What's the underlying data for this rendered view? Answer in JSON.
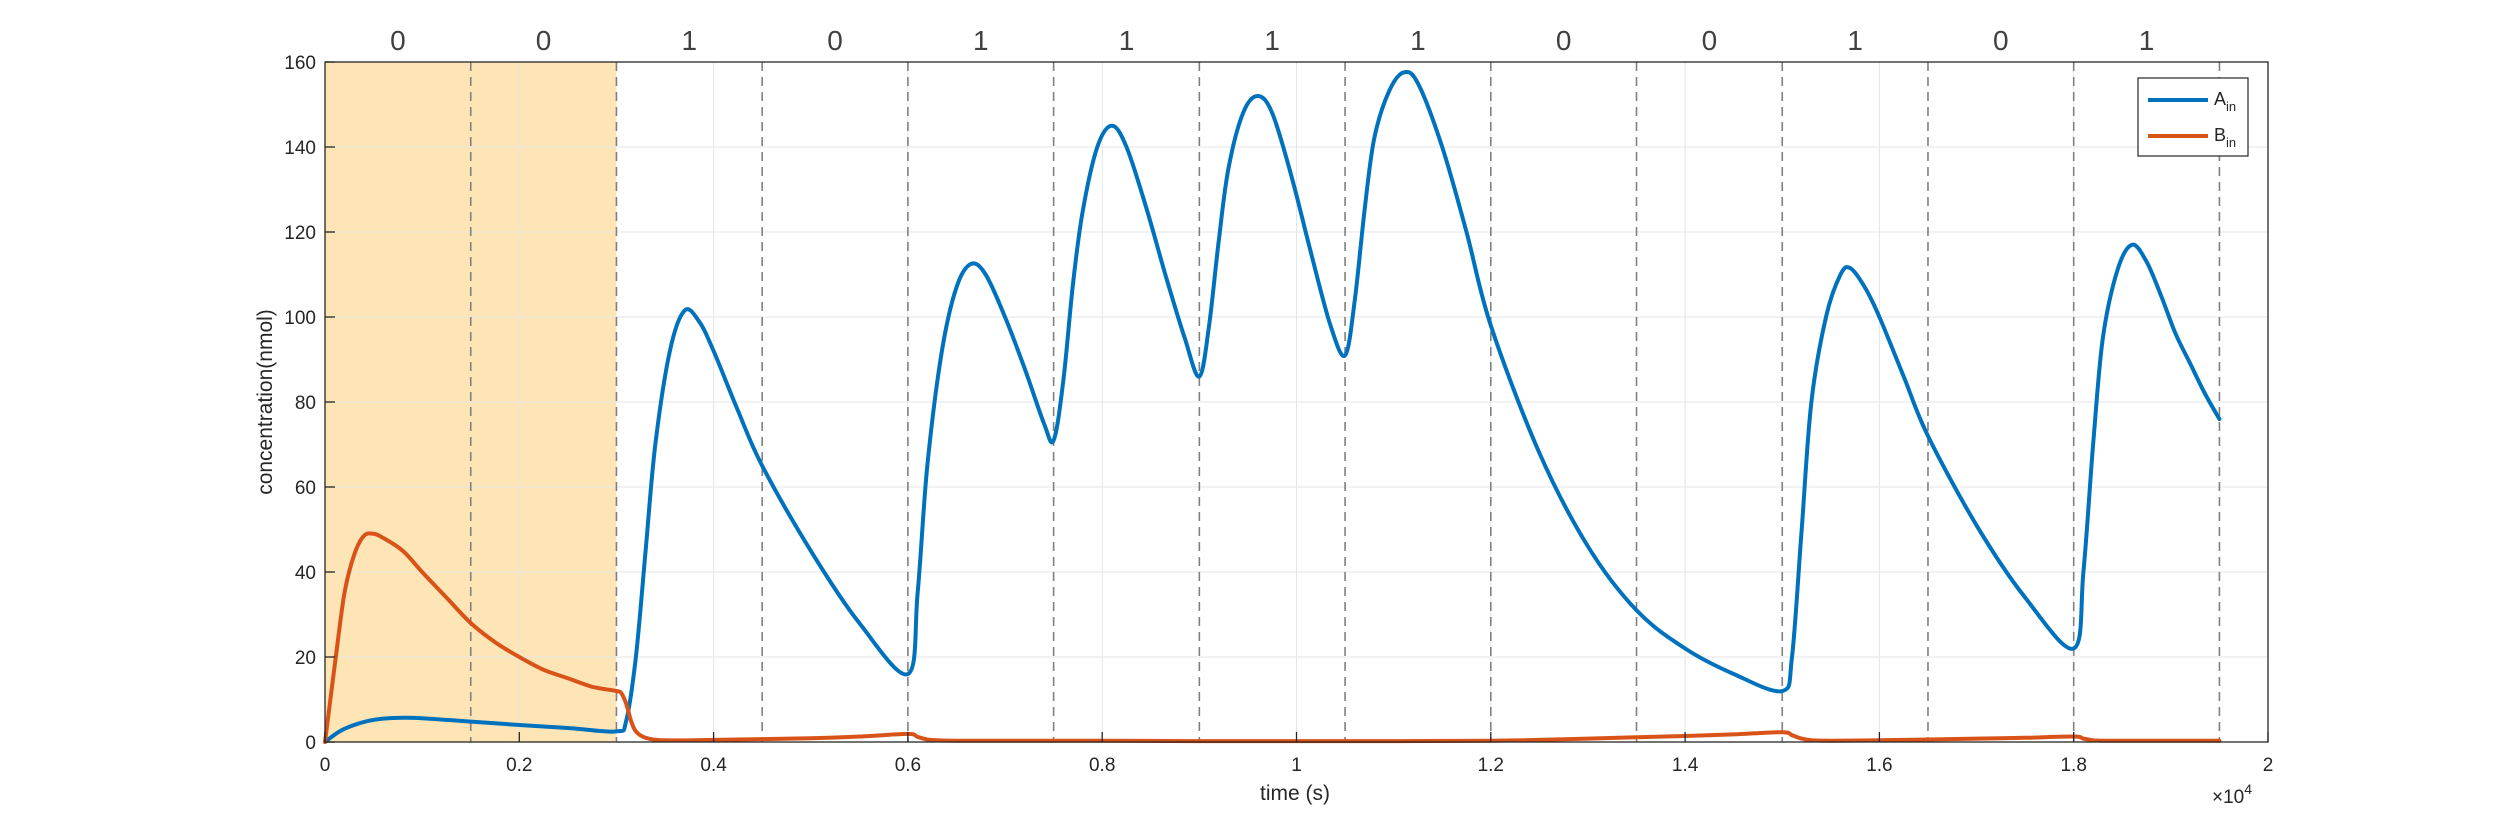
{
  "colors": {
    "A_in": "#0072BD",
    "B_in": "#D95319",
    "highlight": "#FDE5B6",
    "grid": "#E6E6E6",
    "axis": "#262626",
    "boundary": "#808080"
  },
  "chart_data": {
    "type": "line",
    "xlabel": "time (s)",
    "ylabel": "concentration(nmol)",
    "x_exponent_label": "×10",
    "x_exponent_power": "4",
    "xlim": [
      0,
      20000
    ],
    "ylim": [
      0,
      160
    ],
    "grid": true,
    "legend_position": "top-right",
    "x_ticks": [
      0,
      2000,
      4000,
      6000,
      8000,
      10000,
      12000,
      14000,
      16000,
      18000,
      20000
    ],
    "x_tick_labels": [
      "0",
      "0.2",
      "0.4",
      "0.6",
      "0.8",
      "1",
      "1.2",
      "1.4",
      "1.6",
      "1.8",
      "2"
    ],
    "y_ticks": [
      0,
      20,
      40,
      60,
      80,
      100,
      120,
      140,
      160
    ],
    "y_tick_labels": [
      "0",
      "20",
      "40",
      "60",
      "80",
      "100",
      "120",
      "140",
      "160"
    ],
    "highlight_region": [
      0,
      3000
    ],
    "boundaries": [
      1500,
      3000,
      4500,
      6000,
      7500,
      9000,
      10500,
      12000,
      13500,
      15000,
      16500,
      18000,
      19500
    ],
    "bits": [
      {
        "label": "0",
        "x": 750
      },
      {
        "label": "0",
        "x": 2250
      },
      {
        "label": "1",
        "x": 3750
      },
      {
        "label": "0",
        "x": 5250
      },
      {
        "label": "1",
        "x": 6750
      },
      {
        "label": "1",
        "x": 8250
      },
      {
        "label": "1",
        "x": 9750
      },
      {
        "label": "1",
        "x": 11250
      },
      {
        "label": "0",
        "x": 12750
      },
      {
        "label": "0",
        "x": 14250
      },
      {
        "label": "1",
        "x": 15750
      },
      {
        "label": "0",
        "x": 17250
      },
      {
        "label": "1",
        "x": 18750
      }
    ],
    "series": [
      {
        "name": "A",
        "subscript": "in",
        "color_key": "A_in",
        "x": [
          0,
          150,
          300,
          450,
          600,
          800,
          1000,
          1500,
          2000,
          2500,
          3000,
          3100,
          3200,
          3300,
          3400,
          3550,
          3700,
          3850,
          4000,
          4250,
          4500,
          5000,
          5500,
          6000,
          6100,
          6200,
          6350,
          6500,
          6650,
          6800,
          7000,
          7200,
          7400,
          7500,
          7600,
          7700,
          7800,
          7950,
          8100,
          8250,
          8450,
          8650,
          8850,
          9000,
          9100,
          9200,
          9300,
          9450,
          9600,
          9750,
          9950,
          10150,
          10350,
          10500,
          10600,
          10700,
          10800,
          10950,
          11100,
          11250,
          11500,
          11750,
          12000,
          12500,
          13000,
          13500,
          14000,
          14500,
          15000,
          15100,
          15200,
          15300,
          15450,
          15600,
          15700,
          15850,
          16000,
          16250,
          16500,
          17000,
          17500,
          18000,
          18100,
          18200,
          18300,
          18450,
          18600,
          18750,
          18900,
          19050,
          19200,
          19350,
          19500
        ],
        "y": [
          0,
          2.5,
          4,
          5,
          5.5,
          5.7,
          5.6,
          4.8,
          4.0,
          3.3,
          2.5,
          5,
          20,
          45,
          70,
          92,
          101.5,
          99,
          92,
          78,
          65,
          45,
          28,
          16,
          35,
          65,
          92,
          107,
          112.5,
          110,
          100,
          88,
          75,
          71,
          85,
          108,
          125,
          140,
          145,
          140,
          126,
          110,
          95,
          86,
          98,
          118,
          135,
          148,
          152,
          148,
          133,
          115,
          98,
          91,
          104,
          125,
          142,
          153,
          157.5,
          155,
          140,
          120,
          98,
          68,
          46,
          31,
          22,
          16,
          12,
          20,
          50,
          80,
          100,
          110,
          111.5,
          107,
          100,
          86,
          72,
          51,
          34,
          22,
          40,
          70,
          95,
          111,
          117,
          113,
          105,
          96,
          89,
          82,
          76
        ]
      },
      {
        "name": "B",
        "subscript": "in",
        "color_key": "B_in",
        "x": [
          0,
          100,
          200,
          300,
          400,
          500,
          600,
          800,
          1000,
          1250,
          1500,
          1750,
          2000,
          2250,
          2500,
          2750,
          3000,
          3050,
          3100,
          3150,
          3200,
          3300,
          3500,
          4000,
          5000,
          5500,
          6000,
          6100,
          6200,
          6300,
          6500,
          7000,
          7500,
          8000,
          9000,
          10000,
          11000,
          12000,
          12500,
          13000,
          13500,
          14000,
          14500,
          15000,
          15100,
          15200,
          15300,
          15500,
          16000,
          16500,
          17000,
          17500,
          18000,
          18100,
          18200,
          18300,
          18500,
          19000,
          19500
        ],
        "y": [
          0,
          18,
          35,
          44,
          48.5,
          49,
          48,
          45,
          40,
          34,
          28,
          23.5,
          20,
          17,
          15,
          13,
          12,
          11.5,
          9,
          5,
          2.5,
          1,
          0.4,
          0.5,
          0.9,
          1.3,
          1.9,
          1.2,
          0.6,
          0.4,
          0.3,
          0.3,
          0.3,
          0.3,
          0.2,
          0.2,
          0.2,
          0.3,
          0.5,
          0.8,
          1.1,
          1.4,
          1.8,
          2.3,
          1.6,
          0.8,
          0.4,
          0.3,
          0.4,
          0.6,
          0.8,
          1.0,
          1.3,
          0.8,
          0.4,
          0.3,
          0.3,
          0.3,
          0.3
        ]
      }
    ]
  }
}
